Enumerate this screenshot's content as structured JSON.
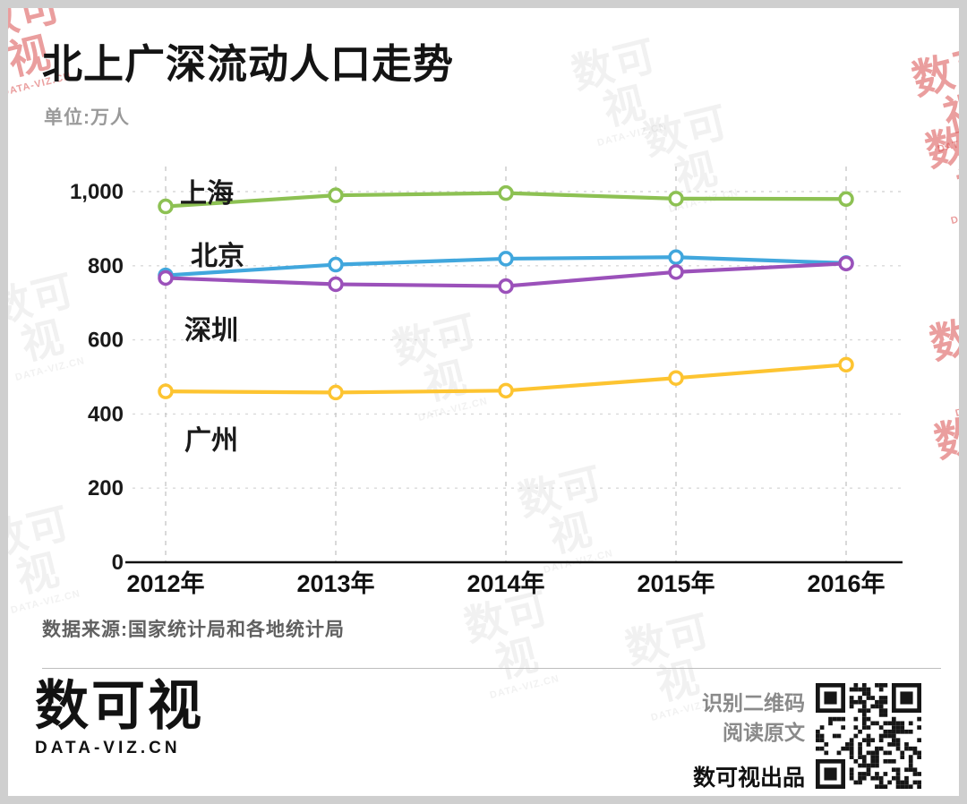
{
  "title": "北上广深流动人口走势",
  "subtitle": "单位:万人",
  "source": "数据来源:国家统计局和各地统计局",
  "watermark": {
    "text": "数可视",
    "sub": "DATA-VIZ.CN"
  },
  "footer": {
    "logo_text": "数可视",
    "logo_sub": "DATA-VIZ.CN",
    "qr_hint_line1": "识别二维码",
    "qr_hint_line2": "阅读原文",
    "credit": "数可视出品"
  },
  "chart_data": {
    "type": "line",
    "title": "北上广深流动人口走势",
    "unit": "万人",
    "categories": [
      "2012年",
      "2013年",
      "2014年",
      "2015年",
      "2016年"
    ],
    "y_ticks": [
      0,
      200,
      400,
      600,
      800,
      1000
    ],
    "y_tick_labels": [
      "0",
      "200",
      "400",
      "600",
      "800",
      "1,000"
    ],
    "ylim": [
      0,
      1000
    ],
    "grid": "dashed",
    "legend_position": "inline-labels",
    "series": [
      {
        "name": "上海",
        "color": "#8dc153",
        "values": [
          960,
          990,
          996,
          981,
          980
        ]
      },
      {
        "name": "北京",
        "color": "#41a7dd",
        "values": [
          774,
          803,
          819,
          823,
          807
        ]
      },
      {
        "name": "深圳",
        "color": "#9b51ba",
        "values": [
          767,
          750,
          745,
          783,
          806
        ]
      },
      {
        "name": "广州",
        "color": "#fdc431",
        "values": [
          461,
          458,
          463,
          497,
          533
        ]
      }
    ]
  }
}
